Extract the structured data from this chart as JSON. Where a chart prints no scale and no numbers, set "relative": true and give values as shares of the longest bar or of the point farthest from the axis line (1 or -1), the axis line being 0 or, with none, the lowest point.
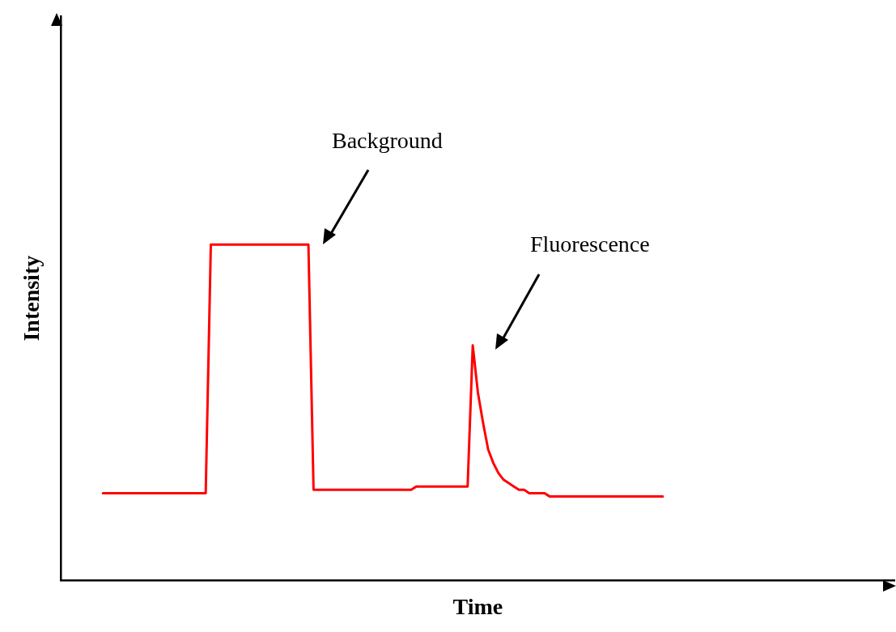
{
  "chart_data": {
    "type": "line",
    "relative": true,
    "xlabel": "Time",
    "ylabel": "Intensity",
    "annotations": [
      "Background",
      "Fluorescence"
    ],
    "categories": [
      null,
      null,
      null,
      null,
      null,
      null,
      null,
      null,
      null,
      null,
      null,
      null,
      null,
      null,
      null,
      null,
      null,
      null,
      null,
      null,
      null,
      null,
      null,
      null,
      null,
      null,
      null,
      null,
      null,
      null,
      null,
      null,
      null,
      null,
      null,
      null,
      null,
      null,
      null,
      null,
      null,
      null,
      null,
      null,
      null,
      null,
      null,
      null,
      null,
      null,
      null,
      null,
      null,
      null,
      null,
      null,
      null,
      null,
      null,
      null,
      null,
      null,
      null,
      null,
      null,
      null,
      null,
      null,
      null,
      null,
      null,
      null,
      null,
      null,
      null,
      null,
      null,
      null,
      null,
      null,
      null,
      null,
      null,
      null,
      null,
      null,
      null,
      null,
      null,
      null,
      null,
      null,
      null,
      null,
      null,
      null,
      null,
      null,
      null,
      null,
      null,
      null,
      null,
      null,
      null,
      null,
      null,
      null,
      null,
      null
    ],
    "series": [
      {
        "color": "#ff0000",
        "values": [
          0.26,
          0.26,
          0.26,
          0.26,
          0.26,
          0.26,
          0.26,
          0.26,
          0.26,
          0.26,
          0.26,
          0.26,
          0.26,
          0.26,
          0.26,
          0.26,
          0.26,
          0.26,
          0.26,
          0.26,
          0.26,
          1,
          1,
          1,
          1,
          1,
          1,
          1,
          1,
          1,
          1,
          1,
          1,
          1,
          1,
          1,
          1,
          1,
          1,
          1,
          1,
          0.27,
          0.27,
          0.27,
          0.27,
          0.27,
          0.27,
          0.27,
          0.27,
          0.27,
          0.27,
          0.27,
          0.27,
          0.27,
          0.27,
          0.27,
          0.27,
          0.27,
          0.27,
          0.27,
          0.27,
          0.28,
          0.28,
          0.28,
          0.28,
          0.28,
          0.28,
          0.28,
          0.28,
          0.28,
          0.28,
          0.28,
          0.7,
          0.56,
          0.47,
          0.39,
          0.35,
          0.32,
          0.3,
          0.29,
          0.28,
          0.27,
          0.27,
          0.26,
          0.26,
          0.26,
          0.26,
          0.25,
          0.25,
          0.25,
          0.25,
          0.25,
          0.25,
          0.25,
          0.25,
          0.25,
          0.25,
          0.25,
          0.25,
          0.25,
          0.25,
          0.25,
          0.25,
          0.25,
          0.25,
          0.25,
          0.25,
          0.25,
          0.25,
          0.25
        ]
      }
    ]
  }
}
